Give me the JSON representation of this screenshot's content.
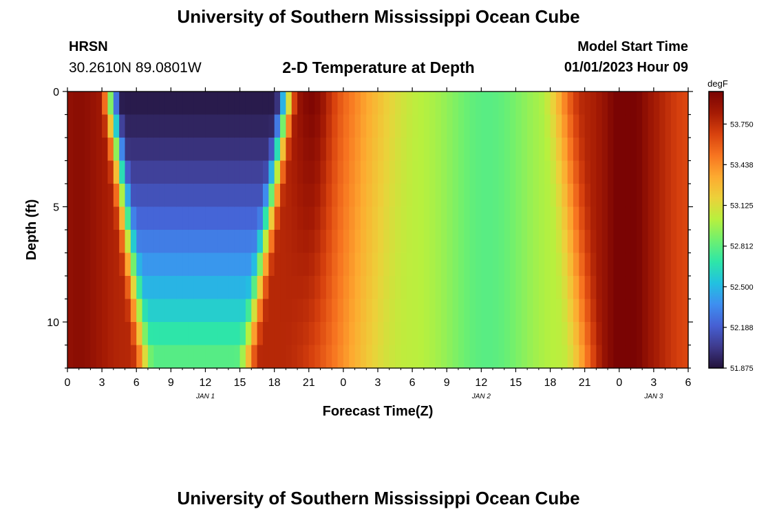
{
  "header": {
    "title": "University of Southern Mississippi Ocean Cube",
    "station": "HRSN",
    "coords": "30.2610N  89.0801W",
    "subtitle": "2-D Temperature at Depth",
    "model_start_label": "Model Start Time",
    "model_start_value": "01/01/2023 Hour 09",
    "footer_title": "University of Southern Mississippi Ocean Cube"
  },
  "chart_data": {
    "type": "heatmap",
    "title": "2-D Temperature at Depth",
    "xlabel": "Forecast Time(Z)",
    "ylabel": "Depth (ft)",
    "units": "degF",
    "x_hours_from_jan1_00z": [
      0,
      54
    ],
    "x_tick_hours": [
      0,
      3,
      6,
      9,
      12,
      15,
      18,
      21,
      24,
      27,
      30,
      33,
      36,
      39,
      42,
      45,
      48,
      51,
      54
    ],
    "x_tick_labels": [
      "0",
      "3",
      "6",
      "9",
      "12",
      "15",
      "18",
      "21",
      "0",
      "3",
      "6",
      "9",
      "12",
      "15",
      "18",
      "21",
      "0",
      "3",
      "6"
    ],
    "date_labels": [
      {
        "text": "JAN 1",
        "hour": 12
      },
      {
        "text": "JAN 2",
        "hour": 36
      },
      {
        "text": "JAN 3",
        "hour": 51
      }
    ],
    "ylim": [
      0,
      12
    ],
    "y_tick_values": [
      0,
      5,
      10
    ],
    "y_tick_labels": [
      "0",
      "5",
      "10"
    ],
    "depth_levels": 12,
    "colorbar": {
      "vmin": 51.875,
      "vmax": 54.0,
      "tick_values": [
        51.875,
        52.188,
        52.5,
        52.812,
        53.125,
        53.438,
        53.75
      ],
      "tick_labels": [
        "51.875",
        "52.188",
        "52.500",
        "52.812",
        "53.125",
        "53.438",
        "53.750"
      ],
      "colors": [
        "#23123a",
        "#3e3a8c",
        "#4660d4",
        "#3e8ff0",
        "#22c1e0",
        "#2ee6a8",
        "#6ef070",
        "#b8f03e",
        "#ecd13a",
        "#fdaa30",
        "#f77420",
        "#d8420e",
        "#a41a04",
        "#7a0403"
      ]
    },
    "features": [
      {
        "name": "cold-core-jan1",
        "center_hour": 11.5,
        "min_value": 51.9
      },
      {
        "name": "cold-band-jan2",
        "center_hour": 36.5,
        "value": 52.9
      },
      {
        "name": "warm-band-jan3",
        "center_hour": 48.5,
        "value": 54.0
      }
    ]
  }
}
